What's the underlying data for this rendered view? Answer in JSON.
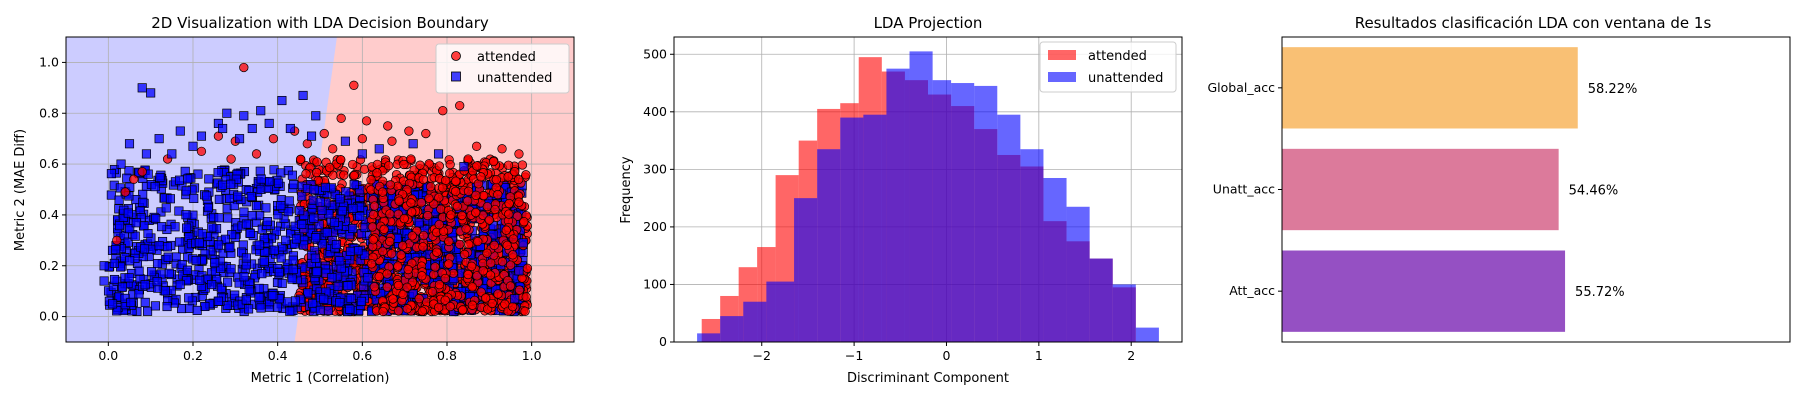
{
  "chart_data": [
    {
      "type": "scatter",
      "title": "2D Visualization with LDA Decision Boundary",
      "xlabel": "Metric 1 (Correlation)",
      "ylabel": "Metric 2 (MAE Diff)",
      "xlim": [
        -0.1,
        1.1
      ],
      "ylim": [
        -0.1,
        1.1
      ],
      "xticks": [
        "0.0",
        "0.2",
        "0.4",
        "0.6",
        "0.8",
        "1.0"
      ],
      "yticks": [
        "0.0",
        "0.2",
        "0.4",
        "0.6",
        "0.8",
        "1.0"
      ],
      "grid": true,
      "legend_position": "top-right",
      "region_colors": {
        "unattended": "#ccccff",
        "attended": "#ffcccc"
      },
      "decision_boundary": {
        "x_at_y_min": 0.44,
        "x_at_y_max": 0.54
      },
      "series": [
        {
          "name": "attended",
          "marker": "circle",
          "color": "#ff0000",
          "cloud": {
            "x_range": [
              0.45,
              0.99
            ],
            "y_core_max": 0.6
          },
          "points": [
            [
              0.32,
              0.98
            ],
            [
              0.58,
              0.91
            ],
            [
              0.83,
              0.83
            ],
            [
              0.79,
              0.81
            ],
            [
              0.55,
              0.78
            ],
            [
              0.61,
              0.77
            ],
            [
              0.51,
              0.72
            ],
            [
              0.66,
              0.75
            ],
            [
              0.71,
              0.73
            ],
            [
              0.44,
              0.73
            ],
            [
              0.47,
              0.68
            ],
            [
              0.6,
              0.7
            ],
            [
              0.75,
              0.72
            ],
            [
              0.87,
              0.67
            ],
            [
              0.93,
              0.66
            ],
            [
              0.97,
              0.64
            ],
            [
              0.96,
              0.57
            ],
            [
              0.91,
              0.61
            ],
            [
              0.85,
              0.62
            ],
            [
              0.29,
              0.62
            ],
            [
              0.35,
              0.64
            ],
            [
              0.14,
              0.62
            ],
            [
              0.22,
              0.65
            ],
            [
              0.08,
              0.57
            ],
            [
              0.04,
              0.49
            ],
            [
              0.06,
              0.54
            ],
            [
              0.02,
              0.3
            ],
            [
              0.94,
              0.34
            ],
            [
              0.97,
              0.45
            ],
            [
              0.98,
              0.28
            ],
            [
              0.99,
              0.19
            ],
            [
              0.95,
              0.12
            ],
            [
              0.67,
              0.69
            ],
            [
              0.39,
              0.7
            ],
            [
              0.26,
              0.71
            ],
            [
              0.53,
              0.66
            ],
            [
              0.88,
              0.55
            ],
            [
              0.92,
              0.48
            ],
            [
              0.9,
              0.38
            ],
            [
              0.3,
              0.69
            ]
          ]
        },
        {
          "name": "unattended",
          "marker": "square",
          "color": "#0000ff",
          "cloud": {
            "x_range": [
              0.0,
              0.98
            ],
            "y_core_max": 0.56
          },
          "points": [
            [
              0.08,
              0.9
            ],
            [
              0.1,
              0.88
            ],
            [
              0.41,
              0.85
            ],
            [
              0.28,
              0.8
            ],
            [
              0.32,
              0.79
            ],
            [
              0.36,
              0.81
            ],
            [
              0.46,
              0.87
            ],
            [
              0.22,
              0.71
            ],
            [
              0.17,
              0.73
            ],
            [
              0.12,
              0.7
            ],
            [
              0.05,
              0.68
            ],
            [
              0.03,
              0.6
            ],
            [
              0.26,
              0.76
            ],
            [
              0.38,
              0.76
            ],
            [
              0.43,
              0.74
            ],
            [
              0.49,
              0.79
            ],
            [
              0.2,
              0.67
            ],
            [
              0.15,
              0.64
            ],
            [
              0.09,
              0.64
            ],
            [
              0.31,
              0.7
            ],
            [
              0.48,
              0.71
            ],
            [
              0.56,
              0.69
            ],
            [
              0.64,
              0.66
            ],
            [
              0.72,
              0.68
            ],
            [
              0.78,
              0.64
            ],
            [
              0.84,
              0.59
            ],
            [
              0.97,
              0.18
            ],
            [
              0.98,
              0.29
            ],
            [
              0.96,
              0.07
            ],
            [
              -0.01,
              0.14
            ],
            [
              -0.01,
              0.2
            ],
            [
              0.01,
              0.05
            ],
            [
              0.27,
              0.74
            ],
            [
              0.34,
              0.74
            ],
            [
              0.6,
              0.64
            ]
          ]
        }
      ]
    },
    {
      "type": "histogram",
      "title": "LDA Projection",
      "xlabel": "Discriminant Component",
      "ylabel": "Frequency",
      "xlim": [
        -2.95,
        2.55
      ],
      "ylim": [
        0,
        530
      ],
      "xticks": [
        "−2",
        "−1",
        "0",
        "1",
        "2"
      ],
      "yticks": [
        "0",
        "100",
        "200",
        "300",
        "400",
        "500"
      ],
      "grid": true,
      "legend_position": "top-right",
      "series": [
        {
          "name": "attended",
          "color": "#ff0000",
          "bin_edges": [
            -2.65,
            -2.45,
            -2.25,
            -2.05,
            -1.85,
            -1.6,
            -1.4,
            -1.15,
            -0.95,
            -0.7,
            -0.45,
            -0.2,
            0.05,
            0.3,
            0.55,
            0.8,
            1.05,
            1.3,
            1.55,
            1.8,
            2.05
          ],
          "counts": [
            40,
            80,
            130,
            165,
            290,
            350,
            405,
            415,
            495,
            470,
            455,
            430,
            410,
            370,
            325,
            305,
            210,
            175,
            145,
            95
          ]
        },
        {
          "name": "unattended",
          "color": "#0000ff",
          "bin_edges": [
            -2.7,
            -2.45,
            -2.2,
            -1.95,
            -1.65,
            -1.4,
            -1.15,
            -0.9,
            -0.65,
            -0.4,
            -0.15,
            0.05,
            0.3,
            0.55,
            0.8,
            1.05,
            1.3,
            1.55,
            1.8,
            2.05,
            2.3
          ],
          "counts": [
            15,
            45,
            70,
            105,
            250,
            335,
            390,
            395,
            475,
            505,
            455,
            450,
            445,
            395,
            335,
            285,
            235,
            145,
            100,
            25
          ]
        }
      ]
    },
    {
      "type": "bar",
      "orientation": "horizontal",
      "title": "Resultados clasificación LDA con ventana de 1s",
      "categories": [
        "Global_acc",
        "Unatt_acc",
        "Att_acc"
      ],
      "values": [
        58.22,
        54.46,
        55.72
      ],
      "value_labels": [
        "58.22%",
        "54.46%",
        "55.72%"
      ],
      "colors": [
        "#f9c074",
        "#dc7a9b",
        "#9550c3"
      ],
      "xlim": [
        0,
        100
      ],
      "grid": false
    }
  ]
}
